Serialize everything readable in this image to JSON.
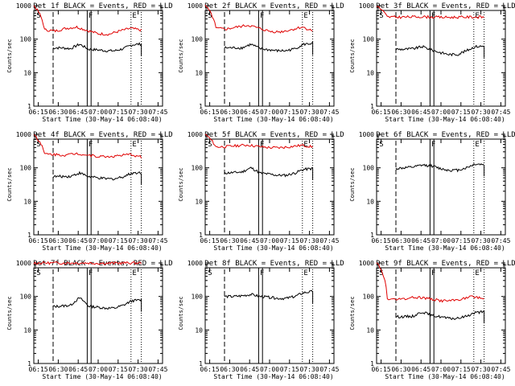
{
  "chart_data": [
    {
      "type": "line",
      "title": "Det 1f BLACK = Events, RED = LLD",
      "ylabel": "Counts/sec",
      "xlabel": "Start Time (30-May-14 06:08:40)",
      "x_ticks": [
        "06:15",
        "06:30",
        "06:45",
        "07:00",
        "07:15",
        "07:30",
        "07:45"
      ],
      "y_ticks": [
        "1",
        "10",
        "100",
        "1000"
      ],
      "ylim": [
        1,
        1000
      ],
      "yscale": "log",
      "markers": [
        "S",
        "F",
        "E"
      ],
      "series": [
        {
          "color": "#000000",
          "values": [
            55,
            55,
            52,
            70,
            50,
            48,
            45,
            45,
            52,
            68,
            72
          ]
        },
        {
          "color": "#e00000",
          "values": [
            1000,
            190,
            175,
            210,
            230,
            180,
            145,
            140,
            175,
            210,
            185
          ]
        }
      ]
    },
    {
      "type": "line",
      "title": "Det 2f BLACK = Events, RED = LLD",
      "ylabel": "Counts/sec",
      "xlabel": "Start Time (30-May-14 06:08:40)",
      "x_ticks": [
        "06:15",
        "06:30",
        "06:45",
        "07:00",
        "07:15",
        "07:30",
        "07:45"
      ],
      "y_ticks": [
        "1",
        "10",
        "100",
        "1000"
      ],
      "ylim": [
        1,
        1000
      ],
      "yscale": "log",
      "markers": [
        "S",
        "F",
        "E"
      ],
      "series": [
        {
          "color": "#000000",
          "values": [
            55,
            55,
            55,
            70,
            52,
            48,
            45,
            45,
            52,
            70,
            75
          ]
        },
        {
          "color": "#e00000",
          "values": [
            1000,
            210,
            200,
            230,
            260,
            210,
            170,
            165,
            190,
            230,
            175
          ]
        }
      ]
    },
    {
      "type": "line",
      "title": "Det 3f BLACK = Events, RED = LLD",
      "ylabel": "Counts/sec",
      "xlabel": "Start Time (30-May-14 06:08:40)",
      "x_ticks": [
        "06:15",
        "06:30",
        "06:45",
        "07:00",
        "07:15",
        "07:30",
        "07:45"
      ],
      "y_ticks": [
        "1",
        "10",
        "100",
        "1000"
      ],
      "ylim": [
        1,
        1000
      ],
      "yscale": "log",
      "markers": [
        "S",
        "F",
        "E"
      ],
      "series": [
        {
          "color": "#000000",
          "values": [
            50,
            50,
            52,
            60,
            48,
            40,
            35,
            35,
            45,
            60,
            62
          ]
        },
        {
          "color": "#e00000",
          "values": [
            1000,
            460,
            455,
            460,
            470,
            460,
            450,
            450,
            455,
            460,
            455
          ]
        }
      ]
    },
    {
      "type": "line",
      "title": "Det 4f BLACK = Events, RED = LLD",
      "ylabel": "Counts/sec",
      "xlabel": "Start Time (30-May-14 06:08:40)",
      "x_ticks": [
        "06:15",
        "06:30",
        "06:45",
        "07:00",
        "07:15",
        "07:30",
        "07:45"
      ],
      "y_ticks": [
        "1",
        "10",
        "100",
        "1000"
      ],
      "ylim": [
        1,
        1000
      ],
      "yscale": "log",
      "markers": [
        "S",
        "F",
        "E"
      ],
      "series": [
        {
          "color": "#000000",
          "values": [
            55,
            55,
            56,
            70,
            55,
            50,
            47,
            47,
            55,
            70,
            72
          ]
        },
        {
          "color": "#e00000",
          "values": [
            1000,
            260,
            250,
            240,
            270,
            240,
            220,
            215,
            230,
            250,
            210
          ]
        }
      ]
    },
    {
      "type": "line",
      "title": "Det 5f BLACK = Events, RED = LLD",
      "ylabel": "Counts/sec",
      "xlabel": "Start Time (30-May-14 06:08:40)",
      "x_ticks": [
        "06:15",
        "06:30",
        "06:45",
        "07:00",
        "07:15",
        "07:30",
        "07:45"
      ],
      "y_ticks": [
        "1",
        "10",
        "100",
        "1000"
      ],
      "ylim": [
        1,
        1000
      ],
      "yscale": "log",
      "markers": [
        "S",
        "F",
        "E"
      ],
      "series": [
        {
          "color": "#000000",
          "values": [
            70,
            72,
            75,
            100,
            70,
            65,
            60,
            60,
            70,
            90,
            95
          ]
        },
        {
          "color": "#e00000",
          "values": [
            1000,
            420,
            430,
            460,
            480,
            430,
            400,
            400,
            430,
            470,
            420
          ]
        }
      ]
    },
    {
      "type": "line",
      "title": "Det 6f BLACK = Events, RED = LLD",
      "ylabel": "Counts/sec",
      "xlabel": "Start Time (30-May-14 06:08:40)",
      "x_ticks": [
        "06:15",
        "06:30",
        "06:45",
        "07:00",
        "07:15",
        "07:30",
        "07:45"
      ],
      "y_ticks": [
        "1",
        "10",
        "100",
        "1000"
      ],
      "ylim": [
        1,
        1000
      ],
      "yscale": "log",
      "markers": [
        "S",
        "F",
        "E"
      ],
      "series": [
        {
          "color": "#000000",
          "values": [
            95,
            100,
            105,
            120,
            115,
            95,
            85,
            85,
            100,
            130,
            125
          ]
        }
      ]
    },
    {
      "type": "line",
      "title": "Det 7f BLACK = Events, RED = LLD",
      "ylabel": "Counts/sec",
      "xlabel": "Start Time (30-May-14 06:08:40)",
      "x_ticks": [
        "06:15",
        "06:30",
        "06:45",
        "07:00",
        "07:15",
        "07:30",
        "07:45"
      ],
      "y_ticks": [
        "1",
        "10",
        "100",
        "1000"
      ],
      "ylim": [
        1,
        1000
      ],
      "yscale": "log",
      "markers": [
        "S",
        "F",
        "E"
      ],
      "series": [
        {
          "color": "#000000",
          "values": [
            50,
            52,
            55,
            90,
            52,
            48,
            45,
            45,
            55,
            75,
            78
          ]
        },
        {
          "color": "#e00000",
          "values": [
            1000,
            1000,
            1000,
            1000,
            1000,
            1000,
            980,
            980,
            1000,
            1000,
            1000
          ]
        }
      ]
    },
    {
      "type": "line",
      "title": "Det 8f BLACK = Events, RED = LLD",
      "ylabel": "Counts/sec",
      "xlabel": "Start Time (30-May-14 06:08:40)",
      "x_ticks": [
        "06:15",
        "06:30",
        "06:45",
        "07:00",
        "07:15",
        "07:30",
        "07:45"
      ],
      "y_ticks": [
        "1",
        "10",
        "100",
        "1000"
      ],
      "ylim": [
        1,
        1000
      ],
      "yscale": "log",
      "markers": [
        "S",
        "F",
        "E"
      ],
      "series": [
        {
          "color": "#000000",
          "values": [
            100,
            100,
            105,
            115,
            100,
            95,
            88,
            88,
            100,
            130,
            140
          ]
        }
      ]
    },
    {
      "type": "line",
      "title": "Det 9f BLACK = Events, RED = LLD",
      "ylabel": "Counts/sec",
      "xlabel": "Start Time (30-May-14 06:08:40)",
      "x_ticks": [
        "06:15",
        "06:30",
        "06:45",
        "07:00",
        "07:15",
        "07:30",
        "07:45"
      ],
      "y_ticks": [
        "1",
        "10",
        "100",
        "1000"
      ],
      "ylim": [
        1,
        1000
      ],
      "yscale": "log",
      "markers": [
        "S",
        "F",
        "E"
      ],
      "series": [
        {
          "color": "#000000",
          "values": [
            25,
            25,
            26,
            35,
            27,
            25,
            22,
            22,
            26,
            33,
            35
          ]
        },
        {
          "color": "#e00000",
          "values": [
            1000,
            85,
            80,
            90,
            95,
            85,
            75,
            75,
            85,
            100,
            85
          ]
        }
      ]
    }
  ]
}
